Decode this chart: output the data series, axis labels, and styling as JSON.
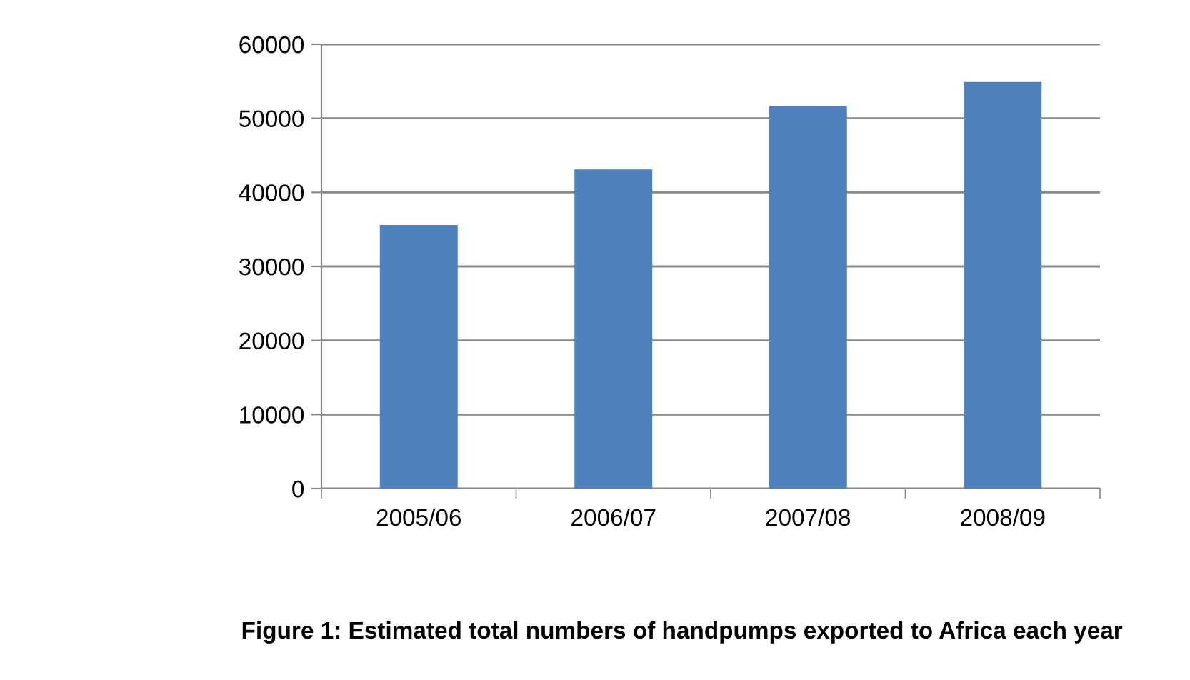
{
  "chart_data": {
    "type": "bar",
    "title": "Figure 1: Estimated total numbers of handpumps exported to Africa each year",
    "categories": [
      "2005/06",
      "2006/07",
      "2007/08",
      "2008/09"
    ],
    "values": [
      35600,
      43100,
      51650,
      54900
    ],
    "color": "#4f81bd",
    "ylim": [
      0,
      60000
    ],
    "yticks": [
      0,
      10000,
      20000,
      30000,
      40000,
      50000,
      60000
    ],
    "grid": "y",
    "legend": false
  }
}
